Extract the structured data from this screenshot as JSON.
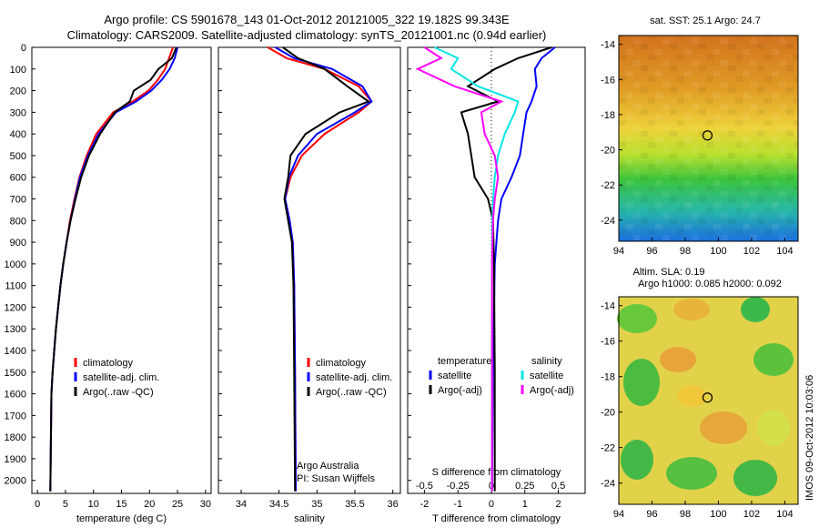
{
  "header": {
    "line1": "Argo profile: CS 5901678_143 01-Oct-2012 20121005_322 19.182S 99.343E",
    "line2": "Climatology: CARS2009. Satellite-adjusted climatology: synTS_20121001.nc (0.94d earlier)"
  },
  "footer": {
    "credit": "IMOS 09-Oct-2012 10:03:06"
  },
  "colors": {
    "climatology": "#ff0000",
    "satellite": "#0000ff",
    "argo": "#000000",
    "salinity_satellite": "#00e5e5",
    "salinity_argo": "#ff00ff"
  },
  "chart_data": [
    {
      "type": "line",
      "id": "temperature",
      "xlabel": "temperature (deg C)",
      "ylabel": "",
      "xlim": [
        -1,
        31
      ],
      "ylim": [
        2060,
        0
      ],
      "y_reversed": true,
      "xticks": [
        0,
        5,
        10,
        15,
        20,
        25,
        30
      ],
      "yticks": [
        0,
        100,
        200,
        300,
        400,
        500,
        600,
        700,
        800,
        900,
        1000,
        1100,
        1200,
        1300,
        1400,
        1500,
        1600,
        1700,
        1800,
        1900,
        2000
      ],
      "legend": [
        "climatology",
        "satellite-adj. clim.",
        "Argo(..raw -QC)"
      ],
      "legend_position": "lower-right",
      "series": [
        {
          "name": "climatology",
          "color": "#ff0000",
          "x": [
            24.2,
            23.5,
            22.8,
            21.5,
            19.8,
            17.0,
            13.5,
            10.5,
            8.8,
            7.5,
            6.6,
            5.8,
            5.2,
            4.6,
            4.1,
            3.7,
            3.3,
            3.0,
            2.7,
            2.5,
            2.3
          ],
          "y": [
            0,
            50,
            100,
            150,
            200,
            250,
            300,
            400,
            500,
            600,
            700,
            800,
            900,
            1000,
            1100,
            1200,
            1300,
            1400,
            1500,
            1600,
            2050
          ]
        },
        {
          "name": "satellite-adj. clim.",
          "color": "#0000ff",
          "x": [
            25.0,
            24.5,
            23.6,
            22.2,
            20.3,
            17.6,
            14.0,
            10.9,
            9.0,
            7.6,
            6.7,
            5.9,
            5.2,
            4.6,
            4.1,
            3.7,
            3.3,
            3.0,
            2.7,
            2.5,
            2.3
          ],
          "y": [
            0,
            50,
            100,
            150,
            200,
            250,
            300,
            400,
            500,
            600,
            700,
            800,
            900,
            1000,
            1100,
            1200,
            1300,
            1400,
            1500,
            1600,
            2050
          ]
        },
        {
          "name": "Argo(..raw -QC)",
          "color": "#000000",
          "x": [
            24.8,
            24.0,
            21.6,
            20.2,
            17.2,
            16.5,
            13.8,
            11.2,
            9.2,
            7.8,
            6.8,
            5.9,
            5.2,
            4.6,
            4.1,
            3.7,
            3.3,
            3.0,
            2.7,
            2.5,
            2.3
          ],
          "y": [
            0,
            50,
            100,
            150,
            200,
            250,
            300,
            400,
            500,
            600,
            700,
            800,
            900,
            1000,
            1100,
            1200,
            1300,
            1400,
            1500,
            1600,
            2050
          ]
        }
      ]
    },
    {
      "type": "line",
      "id": "salinity",
      "xlabel": "salinity",
      "xlim": [
        33.7,
        36.1
      ],
      "ylim": [
        2060,
        0
      ],
      "y_reversed": true,
      "xticks": [
        34,
        34.5,
        35,
        35.5,
        36
      ],
      "xticklabels": [
        "34",
        "34.5",
        "35",
        "35.5",
        "36"
      ],
      "legend": [
        "climatology",
        "satellite-adj. clim.",
        "Argo(..raw -QC)"
      ],
      "legend_position": "lower-right",
      "annotation": [
        "Argo Australia",
        "PI: Susan Wijffels"
      ],
      "series": [
        {
          "name": "climatology",
          "color": "#ff0000",
          "x": [
            34.35,
            34.6,
            35.1,
            35.55,
            35.72,
            35.55,
            35.1,
            34.8,
            34.65,
            34.58,
            34.64,
            34.68,
            34.7,
            34.71,
            34.72
          ],
          "y": [
            0,
            50,
            100,
            180,
            250,
            300,
            400,
            500,
            600,
            700,
            800,
            900,
            1100,
            1500,
            2050
          ]
        },
        {
          "name": "satellite-adj. clim.",
          "color": "#0000ff",
          "x": [
            34.45,
            34.7,
            35.2,
            35.6,
            35.72,
            35.5,
            35.0,
            34.75,
            34.63,
            34.58,
            34.64,
            34.68,
            34.7,
            34.71,
            34.72
          ],
          "y": [
            0,
            50,
            100,
            180,
            250,
            300,
            400,
            500,
            600,
            700,
            800,
            900,
            1100,
            1500,
            2050
          ]
        },
        {
          "name": "Argo(..raw -QC)",
          "color": "#000000",
          "x": [
            34.55,
            34.75,
            35.1,
            35.4,
            35.68,
            35.3,
            34.85,
            34.65,
            34.62,
            34.57,
            34.62,
            34.67,
            34.69,
            34.7,
            34.71
          ],
          "y": [
            0,
            50,
            100,
            180,
            250,
            300,
            400,
            500,
            600,
            700,
            800,
            900,
            1100,
            1500,
            2050
          ]
        }
      ]
    },
    {
      "type": "line",
      "id": "difference",
      "xlabel": "T difference from climatology",
      "top_xlabel": "S difference from climatology",
      "xlim": [
        -2.5,
        2.8
      ],
      "ylim": [
        2060,
        0
      ],
      "y_reversed": true,
      "xticks": [
        -2,
        -1,
        0,
        1,
        2
      ],
      "top_xticklabels": [
        "-0.5",
        "-0.25",
        "0",
        "0.25",
        "0.5"
      ],
      "legend": {
        "temperature_title": "temperature",
        "salinity_title": "salinity",
        "temperature_items": [
          "satellite",
          "Argo(-adj)"
        ],
        "salinity_items": [
          "satellite",
          "Argo(-adj)"
        ]
      },
      "series": [
        {
          "name": "temperature satellite",
          "color": "#0000ff",
          "x": [
            1.9,
            1.5,
            1.3,
            1.35,
            1.2,
            1.05,
            0.95,
            0.85,
            0.6,
            0.3,
            0.2,
            0.1,
            0.05,
            0.02
          ],
          "y": [
            0,
            50,
            100,
            180,
            250,
            300,
            400,
            500,
            600,
            700,
            800,
            1000,
            1500,
            2050
          ]
        },
        {
          "name": "temperature Argo(-adj)",
          "color": "#000000",
          "x": [
            1.8,
            0.8,
            0.1,
            -0.7,
            0.2,
            -0.9,
            -0.7,
            -0.6,
            -0.5,
            -0.1,
            0.05,
            0.08,
            0.1,
            0.1
          ],
          "y": [
            0,
            50,
            100,
            180,
            250,
            300,
            400,
            500,
            600,
            700,
            800,
            1000,
            1500,
            2050
          ]
        },
        {
          "name": "salinity satellite",
          "color": "#00e5e5",
          "x": [
            -1.7,
            -1.0,
            -1.2,
            -0.4,
            0.8,
            0.7,
            0.4,
            0.2,
            0.1,
            0.05,
            0.03,
            0.02,
            0.02,
            0.02
          ],
          "y": [
            0,
            50,
            100,
            180,
            250,
            300,
            400,
            500,
            600,
            700,
            800,
            1000,
            1500,
            2050
          ]
        },
        {
          "name": "salinity Argo(-adj)",
          "color": "#ff00ff",
          "x": [
            -2.0,
            -1.5,
            -2.2,
            -1.1,
            0.3,
            -0.3,
            -0.2,
            0.1,
            0.2,
            0.1,
            0.05,
            0.02,
            0.02,
            0.02
          ],
          "y": [
            0,
            50,
            100,
            180,
            250,
            300,
            400,
            500,
            600,
            700,
            800,
            1000,
            1500,
            2050
          ]
        }
      ]
    },
    {
      "type": "heatmap",
      "id": "sst_map",
      "title": "sat. SST: 25.1  Argo: 24.7",
      "xlim": [
        94,
        104.8
      ],
      "ylim": [
        -25.2,
        -13.5
      ],
      "xticks": [
        94,
        96,
        98,
        100,
        102,
        104
      ],
      "yticks": [
        -14,
        -16,
        -18,
        -20,
        -22,
        -24
      ],
      "marker": {
        "lon": 99.343,
        "lat": -19.182
      }
    },
    {
      "type": "heatmap",
      "id": "sla_map",
      "title": "Altim. SLA: 0.19",
      "subtitle": "Argo h1000: 0.085 h2000: 0.092",
      "xlim": [
        94,
        104.8
      ],
      "ylim": [
        -25.2,
        -13.5
      ],
      "xticks": [
        94,
        96,
        98,
        100,
        102,
        104
      ],
      "yticks": [
        -14,
        -16,
        -18,
        -20,
        -22,
        -24
      ],
      "marker": {
        "lon": 99.343,
        "lat": -19.182
      }
    }
  ]
}
